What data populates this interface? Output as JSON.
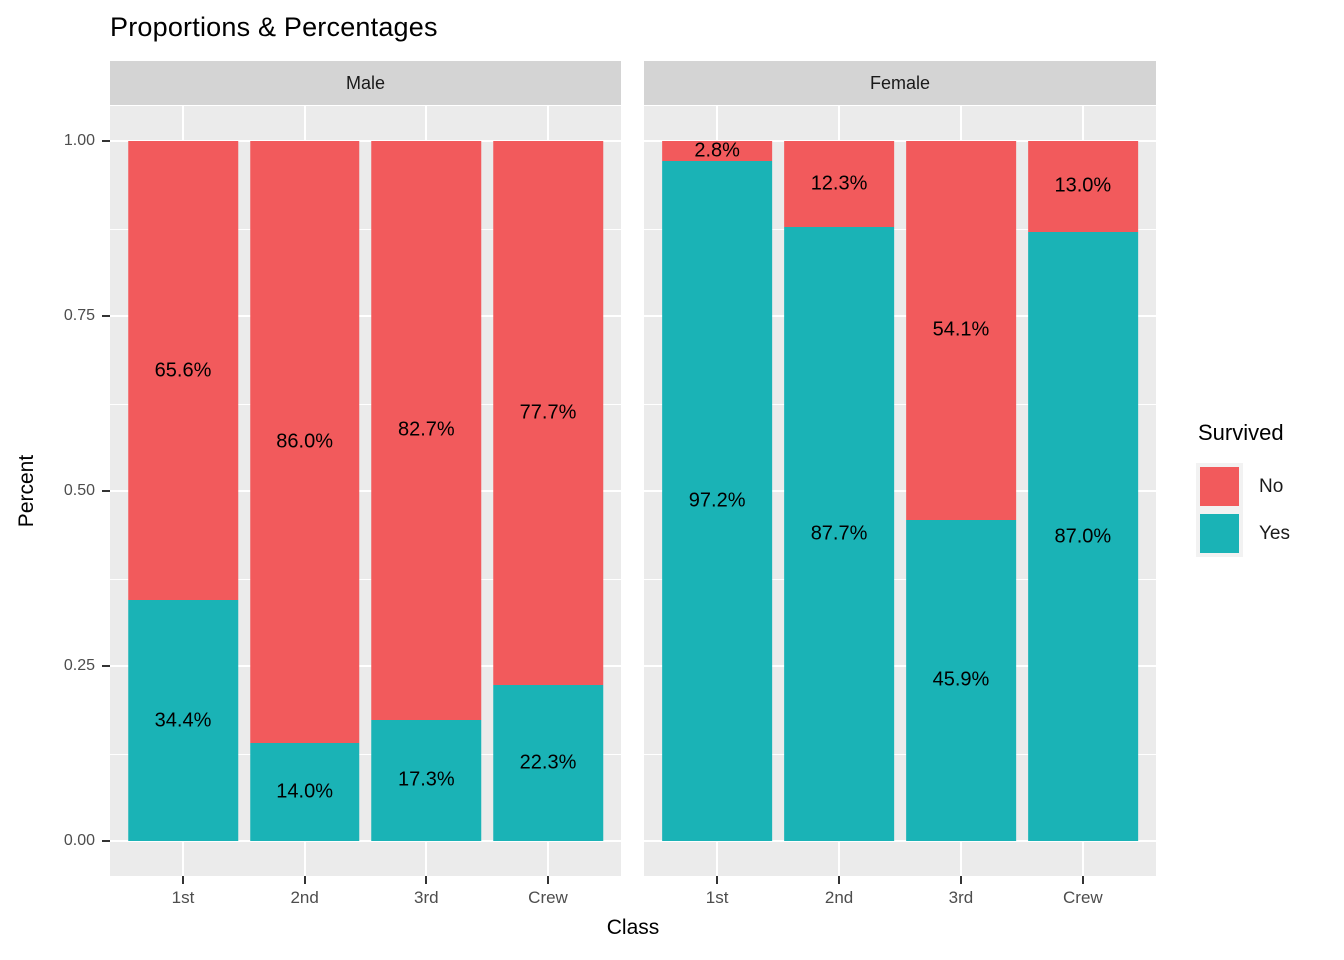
{
  "title": "Proportions & Percentages",
  "chart_data": {
    "type": "bar",
    "variant": "stacked-fill-faceted",
    "title": "Proportions & Percentages",
    "xlabel": "Class",
    "ylabel": "Percent",
    "categories": [
      "1st",
      "2nd",
      "3rd",
      "Crew"
    ],
    "y_axis": {
      "tick_labels": [
        "0.00",
        "0.25",
        "0.50",
        "0.75",
        "1.00"
      ],
      "tick_values": [
        0,
        0.25,
        0.5,
        0.75,
        1
      ],
      "minor_values": [
        0.125,
        0.375,
        0.625,
        0.875
      ],
      "ylim": [
        0,
        1
      ],
      "expansion": 0.05
    },
    "bar_width_fraction": 0.9,
    "edge_padding_units": 0.6,
    "grid": true,
    "facets": [
      {
        "label": "Male",
        "series": [
          {
            "name": "No",
            "color": "#f25a5c",
            "values": [
              65.6,
              86.0,
              82.7,
              77.7
            ],
            "labels": [
              "65.6%",
              "86.0%",
              "82.7%",
              "77.7%"
            ]
          },
          {
            "name": "Yes",
            "color": "#1ab3b6",
            "values": [
              34.4,
              14.0,
              17.3,
              22.3
            ],
            "labels": [
              "34.4%",
              "14.0%",
              "17.3%",
              "22.3%"
            ]
          }
        ]
      },
      {
        "label": "Female",
        "series": [
          {
            "name": "No",
            "color": "#f25a5c",
            "values": [
              2.8,
              12.3,
              54.1,
              13.0
            ],
            "labels": [
              "2.8%",
              "12.3%",
              "54.1%",
              "13.0%"
            ]
          },
          {
            "name": "Yes",
            "color": "#1ab3b6",
            "values": [
              97.2,
              87.7,
              45.9,
              87.0
            ],
            "labels": [
              "97.2%",
              "87.7%",
              "45.9%",
              "87.0%"
            ]
          }
        ]
      }
    ],
    "legend": {
      "title": "Survived",
      "position": "right",
      "entries": [
        {
          "label": "No",
          "color": "#f25a5c"
        },
        {
          "label": "Yes",
          "color": "#1ab3b6"
        }
      ]
    },
    "colors": {
      "panel_background": "#ebebeb",
      "strip_background": "#d4d4d4",
      "gridline": "#ffffff",
      "axis_text": "#4d4d4d",
      "tick_mark": "#333333",
      "label_text": "#000000"
    }
  }
}
